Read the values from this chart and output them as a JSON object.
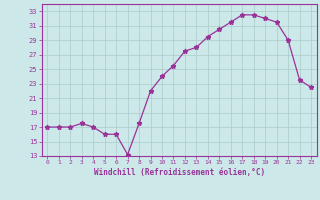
{
  "x": [
    0,
    1,
    2,
    3,
    4,
    5,
    6,
    7,
    8,
    9,
    10,
    11,
    12,
    13,
    14,
    15,
    16,
    17,
    18,
    19,
    20,
    21,
    22,
    23
  ],
  "y": [
    17,
    17,
    17,
    17.5,
    17,
    16,
    16,
    13.2,
    17.5,
    22,
    24,
    25.5,
    27.5,
    28,
    29.5,
    30.5,
    31.5,
    32.5,
    32.5,
    32,
    31.5,
    29,
    23.5,
    22.5
  ],
  "line_color": "#993399",
  "marker": "*",
  "marker_size": 3.5,
  "background_color": "#cce8e8",
  "grid_color": "#aacccc",
  "xlabel": "Windchill (Refroidissement éolien,°C)",
  "xlabel_color": "#993399",
  "tick_color": "#993399",
  "ylim": [
    13,
    34
  ],
  "xlim": [
    -0.5,
    23.5
  ],
  "yticks": [
    13,
    15,
    17,
    19,
    21,
    23,
    25,
    27,
    29,
    31,
    33
  ],
  "xticks": [
    0,
    1,
    2,
    3,
    4,
    5,
    6,
    7,
    8,
    9,
    10,
    11,
    12,
    13,
    14,
    15,
    16,
    17,
    18,
    19,
    20,
    21,
    22,
    23
  ],
  "xtick_labels": [
    "0",
    "1",
    "2",
    "3",
    "4",
    "5",
    "6",
    "7",
    "8",
    "9",
    "10",
    "11",
    "12",
    "13",
    "14",
    "15",
    "16",
    "17",
    "18",
    "19",
    "20",
    "21",
    "22",
    "23"
  ]
}
